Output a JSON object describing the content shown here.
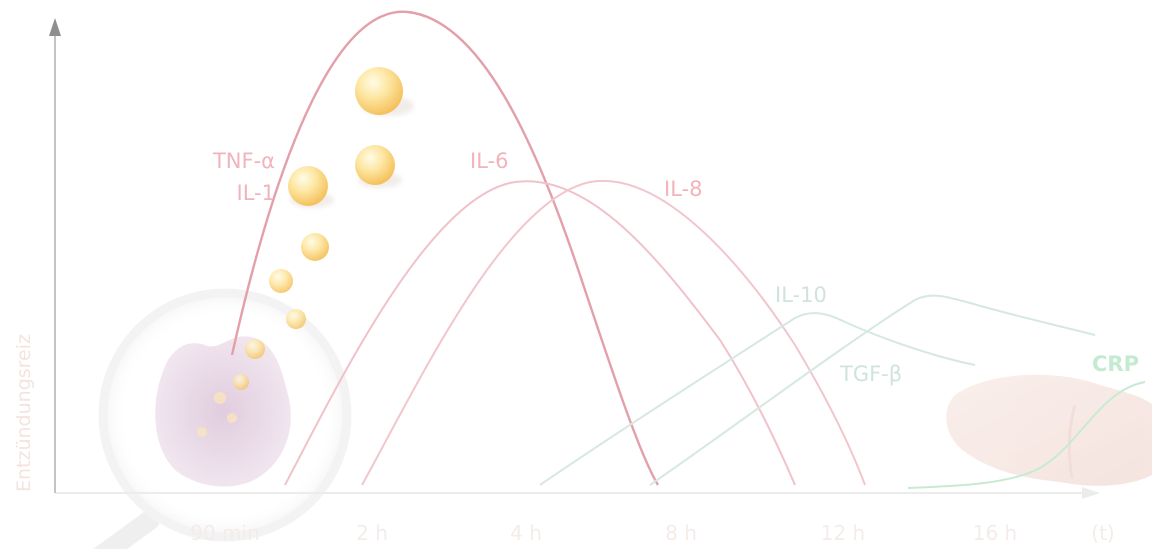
{
  "y_axis": {
    "label": "Entzündungsreiz"
  },
  "x_axis": {
    "ticks": [
      "90 min",
      "2 h",
      "4 h",
      "8 h",
      "12 h",
      "16 h"
    ],
    "unit": "(t)"
  },
  "curve_labels": {
    "tnf_alpha": "TNF-α",
    "il1": "IL-1",
    "il6": "IL-6",
    "il8": "IL-8",
    "il10": "IL-10",
    "tgf_beta": "TGF-β",
    "crp": "CRP"
  },
  "colors": {
    "axis": "#ececec",
    "y_arrow": "#9a9a9a",
    "pro_inflammatory": "#e6a3ad",
    "pro_inflammatory_label": "#f1b8c0",
    "anti_inflammatory": "#cfe4df",
    "anti_inflammatory_label": "#cfe3df",
    "crp": "#c4ead1",
    "tick_label": "#f3ece7",
    "sphere": "#f6c24e",
    "cell": "#b36f9e",
    "liver": "#f1d9d2"
  },
  "illustrations": {
    "cell": "macrophage-under-magnifier",
    "organ": "liver",
    "granules": "cytokine-spheres"
  }
}
